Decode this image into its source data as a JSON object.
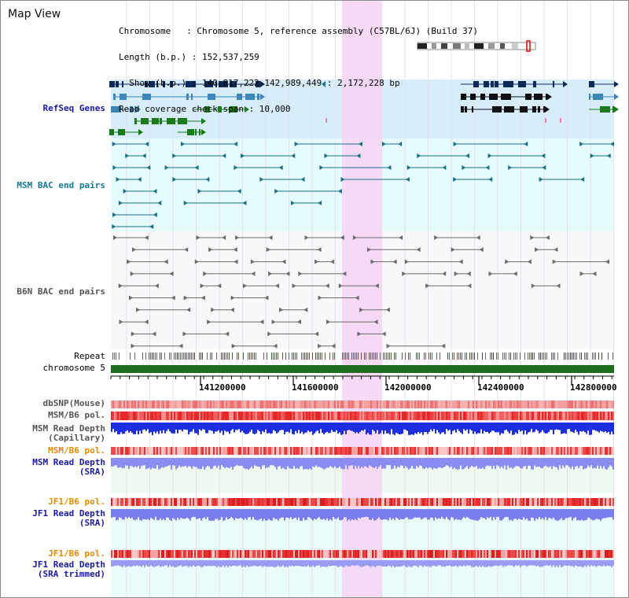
{
  "title": "Map View",
  "info": {
    "line1": "Chromosome   : Chromosome 5, reference assembly (C57BL/6J) (Build 37)",
    "line2": "Length (b.p.) : 152,537,259",
    "line3": "  Show (b.p.) : 140,817,222-142,989,449 : 2,172,228 bp",
    "line4": "Read coverage check span : 10,000"
  },
  "tracks": {
    "refseq": "RefSeq Genes",
    "msm_bac": "MSM BAC end pairs",
    "b6n_bac": "B6N BAC end pairs",
    "repeat": "Repeat",
    "chromosome": "chromosome 5",
    "dbsnp": "dbSNP(Mouse)",
    "msm_pol": "MSM/B6 pol.",
    "msm_depth_cap_1": "MSM Read Depth",
    "msm_depth_cap_2": "(Capillary)",
    "msm_pol_sra": "MSM/B6 pol.",
    "msm_depth_sra_1": "MSM Read Depth",
    "msm_depth_sra_2": "(SRA)",
    "jf1_pol": "JF1/B6 pol.",
    "jf1_depth_1": "JF1 Read Depth",
    "jf1_depth_2": "(SRA)",
    "jf1_pol_trim": "JF1/B6 pol.",
    "jf1_depth_trim_1": "JF1 Read Depth",
    "jf1_depth_trim_2": "(SRA trimmed)"
  },
  "axis": {
    "ticks": [
      "141200000",
      "141600000",
      "142000000",
      "142400000",
      "142800000"
    ]
  },
  "colors": {
    "refseq_label": "#1a1aa0",
    "msm_label": "#137a9a",
    "b6n_label": "#555555",
    "orange_label": "#e68a00",
    "blue_label": "#1a1aa0",
    "highlight": "#f7d4f4",
    "refseq_bg": "#d7eefa",
    "msm_bg": "#e6fbfb",
    "chrom_bar": "#1d6e1d"
  }
}
